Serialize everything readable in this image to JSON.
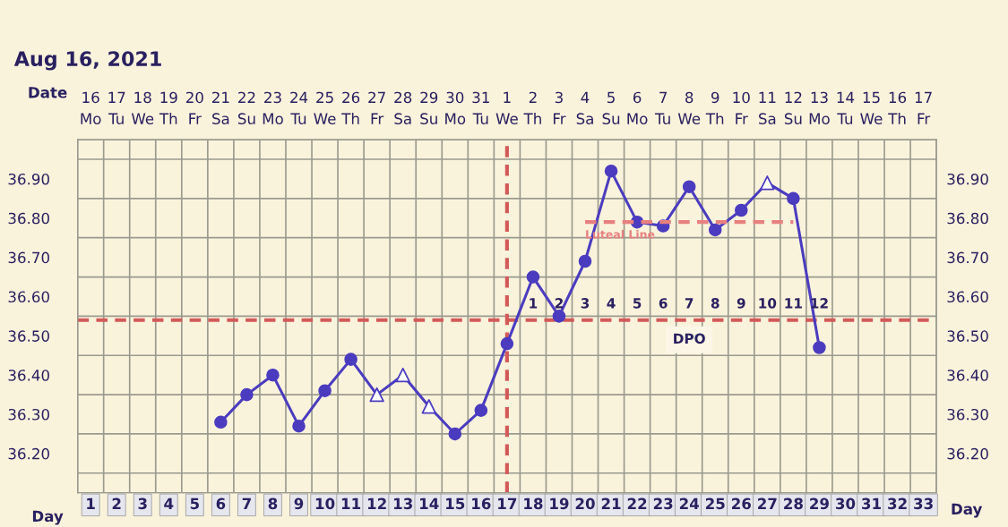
{
  "chart_data": {
    "type": "line",
    "title": "Aug 16, 2021",
    "xlabel": "Day",
    "xlim": [
      0.5,
      33.5
    ],
    "xticks": [
      1,
      2,
      3,
      4,
      5,
      6,
      7,
      8,
      9,
      10,
      11,
      12,
      13,
      14,
      15,
      16,
      17,
      18,
      19,
      20,
      21,
      22,
      23,
      24,
      25,
      26,
      27,
      28,
      29,
      30,
      31,
      32,
      33
    ],
    "ylim": [
      36.1,
      37.0
    ],
    "yticks": [
      {
        "value": 36.2,
        "label": "36.20"
      },
      {
        "value": 36.3,
        "label": "36.30"
      },
      {
        "value": 36.4,
        "label": "36.40"
      },
      {
        "value": 36.5,
        "label": "36.50"
      },
      {
        "value": 36.6,
        "label": "36.60"
      },
      {
        "value": 36.7,
        "label": "36.70"
      },
      {
        "value": 36.8,
        "label": "36.80"
      },
      {
        "value": 36.9,
        "label": "36.90"
      }
    ],
    "y2lim": [
      36.1,
      37.0
    ],
    "y2ticks": [
      {
        "value": 36.2,
        "label": "36.20"
      },
      {
        "value": 36.3,
        "label": "36.30"
      },
      {
        "value": 36.4,
        "label": "36.40"
      },
      {
        "value": 36.5,
        "label": "36.50"
      },
      {
        "value": 36.6,
        "label": "36.60"
      },
      {
        "value": 36.7,
        "label": "36.70"
      },
      {
        "value": 36.8,
        "label": "36.80"
      },
      {
        "value": 36.9,
        "label": "36.90"
      }
    ],
    "grid": true,
    "legend": false,
    "series": [
      {
        "marker": "none",
        "color": "#4b3cbf",
        "x": [
          6,
          7,
          8,
          9,
          10,
          11,
          12,
          13,
          14,
          15,
          16,
          17,
          18,
          19,
          20,
          21,
          22,
          23,
          24,
          25,
          26,
          27,
          28,
          29
        ],
        "values": [
          36.28,
          36.35,
          36.4,
          36.27,
          36.36,
          36.44,
          36.35,
          36.4,
          36.32,
          36.25,
          36.31,
          36.48,
          36.65,
          36.55,
          36.69,
          36.92,
          36.79,
          36.78,
          36.88,
          36.77,
          36.82,
          36.89,
          36.85,
          36.47
        ]
      },
      {
        "type": "scatter",
        "marker": "circle",
        "color": "#4b3cbf",
        "x": [
          6,
          7,
          8,
          9,
          10,
          11,
          15,
          16,
          17,
          18,
          19,
          20,
          21,
          22,
          23,
          24,
          25,
          26,
          28,
          29
        ],
        "values": [
          36.28,
          36.35,
          36.4,
          36.27,
          36.36,
          36.44,
          36.25,
          36.31,
          36.48,
          36.65,
          36.55,
          36.69,
          36.92,
          36.79,
          36.78,
          36.88,
          36.77,
          36.82,
          36.85,
          36.47
        ]
      },
      {
        "type": "scatter",
        "marker": "triangle",
        "color": "#4b3cbf",
        "x": [
          12,
          13,
          14,
          27
        ],
        "values": [
          36.35,
          36.4,
          36.32,
          36.89
        ]
      },
      {
        "marker": "none",
        "line_style": "dashed",
        "name": "Luteal Line",
        "color": "#e88080",
        "x": [
          20,
          28
        ],
        "values": [
          36.79,
          36.79
        ]
      }
    ],
    "ref_lines": [
      {
        "axis": "y",
        "value": 36.54,
        "color": "#d35a5a",
        "line_style": "dashed"
      },
      {
        "axis": "x",
        "value": 17,
        "color": "#d35a5a",
        "line_style": "dashed"
      }
    ],
    "annotations": [
      "Date",
      "16\nMo",
      "17\nTu",
      "18\nWe",
      "19\nTh",
      "20\nFr",
      "21\nSa",
      "22\nSu",
      "23\nMo",
      "24\nTu",
      "25\nWe",
      "26\nTh",
      "27\nFr",
      "28\nSa",
      "29\nSu",
      "30\nMo",
      "31\nTu",
      "1\nWe",
      "2\nTh",
      "3\nFr",
      "4\nSa",
      "5\nSu",
      "6\nMo",
      "7\nTu",
      "8\nWe",
      "9\nTh",
      "10\nFr",
      "11\nSa",
      "12\nSu",
      "13\nMo",
      "14\nTu",
      "15\nWe",
      "16\nTh",
      "17\nFr",
      "1",
      "2",
      "3",
      "4",
      "5",
      "6",
      "7",
      "8",
      "9",
      "10",
      "11",
      "12",
      "DPO"
    ]
  }
}
